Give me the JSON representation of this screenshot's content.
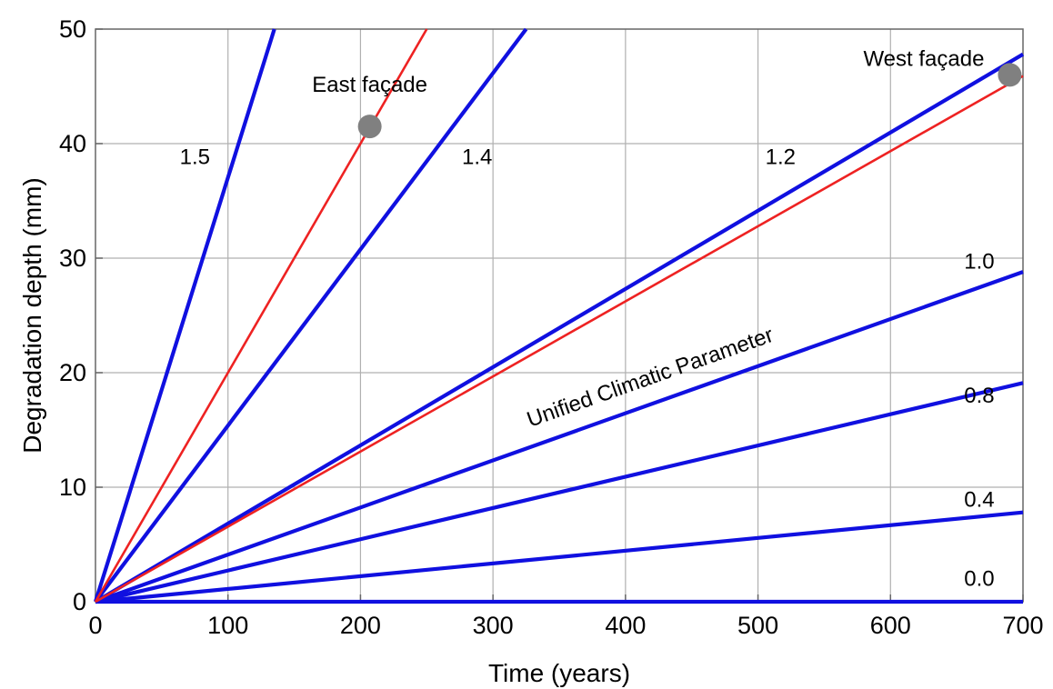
{
  "chart_data": {
    "type": "line",
    "title": "",
    "xlabel": "Time (years)",
    "ylabel": "Degradation depth (mm)",
    "xlim": [
      0,
      700
    ],
    "ylim": [
      0,
      50
    ],
    "xticks": [
      0,
      100,
      200,
      300,
      400,
      500,
      600,
      700
    ],
    "yticks": [
      0,
      10,
      20,
      30,
      40,
      50
    ],
    "grid": true,
    "legend": "none",
    "series_group_label": "Unified Climatic Parameter",
    "series": [
      {
        "name": "1.5",
        "color": "#1010e0",
        "x": [
          0,
          135
        ],
        "y": [
          0,
          50
        ]
      },
      {
        "name": "1.4",
        "color": "#1010e0",
        "x": [
          0,
          325
        ],
        "y": [
          0,
          50
        ]
      },
      {
        "name": "1.2",
        "color": "#1010e0",
        "x": [
          0,
          700
        ],
        "y": [
          0,
          47.8
        ]
      },
      {
        "name": "1.0",
        "color": "#1010e0",
        "x": [
          0,
          700
        ],
        "y": [
          0,
          28.8
        ]
      },
      {
        "name": "0.8",
        "color": "#1010e0",
        "x": [
          0,
          700
        ],
        "y": [
          0,
          19.1
        ]
      },
      {
        "name": "0.4",
        "color": "#1010e0",
        "x": [
          0,
          700
        ],
        "y": [
          0,
          7.8
        ]
      },
      {
        "name": "0.0",
        "color": "#1010e0",
        "x": [
          0,
          700
        ],
        "y": [
          0,
          0
        ]
      },
      {
        "name": "",
        "color": "#ee2222",
        "x": [
          0,
          250
        ],
        "y": [
          0,
          50
        ]
      },
      {
        "name": "",
        "color": "#ee2222",
        "x": [
          0,
          700
        ],
        "y": [
          0,
          45.9
        ]
      }
    ],
    "points": [
      {
        "label": "East façade",
        "x": 207,
        "y": 41.5,
        "color": "#808080"
      },
      {
        "label": "West façade",
        "x": 690,
        "y": 46,
        "color": "#808080"
      }
    ],
    "line_labels": [
      {
        "text": "1.5",
        "x": 75,
        "y": 38.2
      },
      {
        "text": "1.4",
        "x": 288,
        "y": 38.2
      },
      {
        "text": "1.2",
        "x": 517,
        "y": 38.2
      },
      {
        "text": "1.0",
        "x": 667,
        "y": 29.1
      },
      {
        "text": "0.8",
        "x": 667,
        "y": 17.4
      },
      {
        "text": "0.4",
        "x": 667,
        "y": 8.3
      },
      {
        "text": "0.0",
        "x": 667,
        "y": 1.4
      }
    ]
  }
}
